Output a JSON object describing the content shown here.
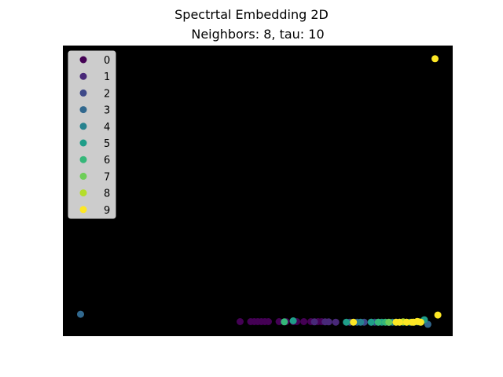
{
  "chart_data": {
    "type": "scatter",
    "title": "Spectrtal Embedding 2D",
    "subtitle": "Neighbors: 8, tau: 10",
    "xlabel": "",
    "ylabel": "",
    "xlim": [
      -0.05,
      1.05
    ],
    "ylim": [
      -0.05,
      1.05
    ],
    "grid": false,
    "axes_visible": false,
    "background": "#000000",
    "legend_position": "top-left",
    "series": [
      {
        "name": "0",
        "color": "#440154",
        "points": [
          [
            0.45,
            0.005
          ],
          [
            0.48,
            0.005
          ],
          [
            0.49,
            0.005
          ],
          [
            0.5,
            0.005
          ],
          [
            0.51,
            0.005
          ],
          [
            0.52,
            0.005
          ],
          [
            0.53,
            0.005
          ],
          [
            0.56,
            0.005
          ],
          [
            0.58,
            0.005
          ],
          [
            0.6,
            0.005
          ],
          [
            0.61,
            0.005
          ],
          [
            0.63,
            0.005
          ],
          [
            0.65,
            0.005
          ],
          [
            0.67,
            0.005
          ],
          [
            0.68,
            0.005
          ]
        ]
      },
      {
        "name": "1",
        "color": "#482878",
        "points": [
          [
            0.66,
            0.004
          ],
          [
            0.69,
            0.004
          ],
          [
            0.7,
            0.004
          ],
          [
            0.72,
            0.003
          ]
        ]
      },
      {
        "name": "2",
        "color": "#3e4989",
        "points": [
          [
            0.76,
            0.003
          ],
          [
            0.8,
            0.003
          ],
          [
            0.83,
            0.003
          ]
        ]
      },
      {
        "name": "3",
        "color": "#31688e",
        "points": [
          [
            0.0,
            0.033
          ],
          [
            0.78,
            0.003
          ],
          [
            0.82,
            0.003
          ],
          [
            0.87,
            0.002
          ],
          [
            0.98,
            -0.005
          ]
        ]
      },
      {
        "name": "4",
        "color": "#26828e",
        "points": [
          [
            0.79,
            0.003
          ],
          [
            0.84,
            0.003
          ],
          [
            0.88,
            0.003
          ],
          [
            0.91,
            0.003
          ],
          [
            0.95,
            0.004
          ]
        ]
      },
      {
        "name": "5",
        "color": "#1f9e89",
        "points": [
          [
            0.6,
            0.008
          ],
          [
            0.75,
            0.003
          ],
          [
            0.82,
            0.003
          ],
          [
            0.85,
            0.003
          ],
          [
            0.89,
            0.003
          ],
          [
            0.93,
            0.003
          ],
          [
            0.96,
            0.003
          ],
          [
            0.97,
            0.012
          ]
        ]
      },
      {
        "name": "6",
        "color": "#35b779",
        "points": [
          [
            0.575,
            0.004
          ],
          [
            0.84,
            0.003
          ],
          [
            0.86,
            0.003
          ],
          [
            0.9,
            0.003
          ],
          [
            0.94,
            0.003
          ]
        ]
      },
      {
        "name": "7",
        "color": "#6ece58",
        "points": [
          [
            0.87,
            0.003
          ],
          [
            0.92,
            0.003
          ]
        ]
      },
      {
        "name": "8",
        "color": "#b5de2b",
        "points": [
          [
            0.91,
            0.004
          ],
          [
            0.955,
            0.004
          ]
        ]
      },
      {
        "name": "9",
        "color": "#fde725",
        "points": [
          [
            0.77,
            0.003
          ],
          [
            0.89,
            0.003
          ],
          [
            0.9,
            0.003
          ],
          [
            0.92,
            0.003
          ],
          [
            0.935,
            0.003
          ],
          [
            0.94,
            0.003
          ],
          [
            0.95,
            0.006
          ],
          [
            0.96,
            0.003
          ],
          [
            1.0,
            1.0
          ],
          [
            1.008,
            0.03
          ]
        ]
      }
    ]
  }
}
